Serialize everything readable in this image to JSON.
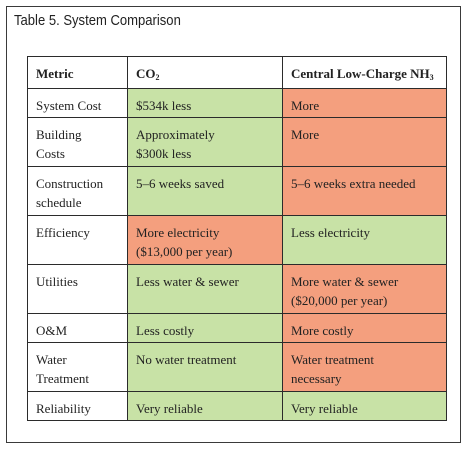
{
  "title": "Table 5. System Comparison",
  "columns": {
    "metric": "Metric",
    "co2_base": "CO",
    "co2_sub": "2",
    "nh3_base": "Central Low-Charge NH",
    "nh3_sub": "3"
  },
  "rows": [
    {
      "metric": [
        "System Cost"
      ],
      "co2": [
        "$534k less"
      ],
      "nh3": [
        "More"
      ],
      "co2_status": "favorable",
      "nh3_status": "unfavorable"
    },
    {
      "metric": [
        "Building",
        "Costs"
      ],
      "co2": [
        "Approximately",
        "$300k less"
      ],
      "nh3": [
        "More"
      ],
      "co2_status": "favorable",
      "nh3_status": "unfavorable"
    },
    {
      "metric": [
        "Construction",
        "schedule"
      ],
      "co2": [
        "5–6 weeks saved"
      ],
      "nh3": [
        "5–6 weeks extra needed"
      ],
      "co2_status": "favorable",
      "nh3_status": "unfavorable"
    },
    {
      "metric": [
        "Efficiency"
      ],
      "co2": [
        "More electricity",
        "($13,000 per year)"
      ],
      "nh3": [
        "Less electricity"
      ],
      "co2_status": "unfavorable",
      "nh3_status": "favorable"
    },
    {
      "metric": [
        "Utilities"
      ],
      "co2": [
        "Less water & sewer"
      ],
      "nh3": [
        "More water & sewer",
        "($20,000 per year)"
      ],
      "co2_status": "favorable",
      "nh3_status": "unfavorable"
    },
    {
      "metric": [
        "O&M"
      ],
      "co2": [
        "Less costly"
      ],
      "nh3": [
        "More costly"
      ],
      "co2_status": "favorable",
      "nh3_status": "unfavorable"
    },
    {
      "metric": [
        "Water",
        "Treatment"
      ],
      "co2": [
        "No water treatment"
      ],
      "nh3": [
        "Water treatment",
        "necessary"
      ],
      "co2_status": "favorable",
      "nh3_status": "unfavorable"
    },
    {
      "metric": [
        "Reliability"
      ],
      "co2": [
        "Very reliable"
      ],
      "nh3": [
        "Very reliable"
      ],
      "co2_status": "favorable",
      "nh3_status": "favorable"
    }
  ],
  "colors": {
    "favorable": "#c8e2a6",
    "unfavorable": "#f49f7e"
  }
}
